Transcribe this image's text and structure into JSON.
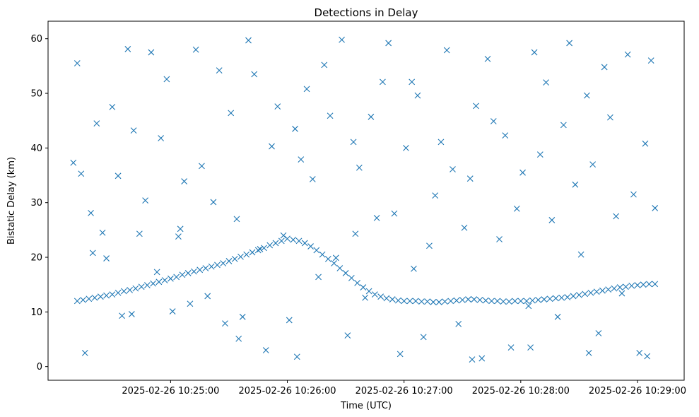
{
  "chart_data": {
    "type": "scatter",
    "title": "Detections in Delay",
    "xlabel": "Time (UTC)",
    "ylabel": "Bistatic Delay (km)",
    "x_ticks": [
      "2025-02-26 10:25:00",
      "2025-02-26 10:26:00",
      "2025-02-26 10:27:00",
      "2025-02-26 10:28:00",
      "2025-02-26 10:29:00"
    ],
    "y_ticks": [
      0,
      10,
      20,
      30,
      40,
      50,
      60
    ],
    "xlim": [
      "2025-02-26 10:23:57",
      "2025-02-26 10:29:24"
    ],
    "ylim": [
      -2.5,
      63.2
    ],
    "grid": false,
    "marker": "x",
    "series_color": "#1f77b4",
    "series": [
      {
        "x": [
          "2025-02-26 10:24:12",
          "2025-02-26 10:24:15",
          "2025-02-26 10:24:18",
          "2025-02-26 10:24:21",
          "2025-02-26 10:24:24",
          "2025-02-26 10:24:27",
          "2025-02-26 10:24:30",
          "2025-02-26 10:24:33",
          "2025-02-26 10:24:36",
          "2025-02-26 10:24:39",
          "2025-02-26 10:24:42",
          "2025-02-26 10:24:45",
          "2025-02-26 10:24:48",
          "2025-02-26 10:24:51",
          "2025-02-26 10:24:54",
          "2025-02-26 10:24:57",
          "2025-02-26 10:25:00",
          "2025-02-26 10:25:03",
          "2025-02-26 10:25:06",
          "2025-02-26 10:25:09",
          "2025-02-26 10:25:12",
          "2025-02-26 10:25:15",
          "2025-02-26 10:25:18",
          "2025-02-26 10:25:21",
          "2025-02-26 10:25:24",
          "2025-02-26 10:25:27",
          "2025-02-26 10:25:30",
          "2025-02-26 10:25:33",
          "2025-02-26 10:25:36",
          "2025-02-26 10:25:39",
          "2025-02-26 10:25:42",
          "2025-02-26 10:25:45",
          "2025-02-26 10:25:48",
          "2025-02-26 10:25:51",
          "2025-02-26 10:25:54",
          "2025-02-26 10:25:57",
          "2025-02-26 10:26:00",
          "2025-02-26 10:26:03",
          "2025-02-26 10:26:06",
          "2025-02-26 10:26:09",
          "2025-02-26 10:26:12",
          "2025-02-26 10:26:15",
          "2025-02-26 10:26:18",
          "2025-02-26 10:26:21",
          "2025-02-26 10:26:24",
          "2025-02-26 10:26:27",
          "2025-02-26 10:26:30",
          "2025-02-26 10:26:33",
          "2025-02-26 10:26:36",
          "2025-02-26 10:26:39",
          "2025-02-26 10:26:42",
          "2025-02-26 10:26:45",
          "2025-02-26 10:26:48",
          "2025-02-26 10:26:51",
          "2025-02-26 10:26:54",
          "2025-02-26 10:26:57",
          "2025-02-26 10:27:00",
          "2025-02-26 10:27:03",
          "2025-02-26 10:27:06",
          "2025-02-26 10:27:09",
          "2025-02-26 10:27:12",
          "2025-02-26 10:27:15",
          "2025-02-26 10:27:18",
          "2025-02-26 10:27:21",
          "2025-02-26 10:27:24",
          "2025-02-26 10:27:27",
          "2025-02-26 10:27:30",
          "2025-02-26 10:27:33",
          "2025-02-26 10:27:36",
          "2025-02-26 10:27:39",
          "2025-02-26 10:27:42",
          "2025-02-26 10:27:45",
          "2025-02-26 10:27:48",
          "2025-02-26 10:27:51",
          "2025-02-26 10:27:54",
          "2025-02-26 10:27:57",
          "2025-02-26 10:28:00",
          "2025-02-26 10:28:03",
          "2025-02-26 10:28:06",
          "2025-02-26 10:28:09",
          "2025-02-26 10:28:12",
          "2025-02-26 10:28:15",
          "2025-02-26 10:28:18",
          "2025-02-26 10:28:21",
          "2025-02-26 10:28:24",
          "2025-02-26 10:28:27",
          "2025-02-26 10:28:30",
          "2025-02-26 10:28:33",
          "2025-02-26 10:28:36",
          "2025-02-26 10:28:39",
          "2025-02-26 10:28:42",
          "2025-02-26 10:28:45",
          "2025-02-26 10:28:48",
          "2025-02-26 10:28:51",
          "2025-02-26 10:28:54",
          "2025-02-26 10:28:57",
          "2025-02-26 10:29:00",
          "2025-02-26 10:29:03",
          "2025-02-26 10:29:06",
          "2025-02-26 10:29:09"
        ],
        "y": [
          12.0,
          12.2,
          12.4,
          12.6,
          12.8,
          13.0,
          13.2,
          13.5,
          13.8,
          14.0,
          14.3,
          14.6,
          14.9,
          15.2,
          15.5,
          15.8,
          16.1,
          16.4,
          16.8,
          17.1,
          17.4,
          17.7,
          18.0,
          18.3,
          18.6,
          18.9,
          19.3,
          19.7,
          20.1,
          20.5,
          20.9,
          21.3,
          21.7,
          22.2,
          22.6,
          23.0,
          23.4,
          23.2,
          23.0,
          22.6,
          22.0,
          21.3,
          20.5,
          19.7,
          18.9,
          18.0,
          17.1,
          16.2,
          15.3,
          14.5,
          13.8,
          13.2,
          12.8,
          12.5,
          12.3,
          12.1,
          12.0,
          12.0,
          12.0,
          11.9,
          11.9,
          11.8,
          11.8,
          11.9,
          12.0,
          12.1,
          12.2,
          12.3,
          12.3,
          12.2,
          12.1,
          12.0,
          12.0,
          11.9,
          11.9,
          12.0,
          12.0,
          12.0,
          12.1,
          12.2,
          12.3,
          12.4,
          12.5,
          12.6,
          12.7,
          12.9,
          13.1,
          13.3,
          13.5,
          13.7,
          13.9,
          14.1,
          14.3,
          14.5,
          14.6,
          14.8,
          14.9,
          15.0,
          15.1,
          15.1
        ]
      },
      {
        "x": [
          "2025-02-26 10:24:10",
          "2025-02-26 10:24:12",
          "2025-02-26 10:24:14",
          "2025-02-26 10:24:16",
          "2025-02-26 10:24:19",
          "2025-02-26 10:24:22",
          "2025-02-26 10:24:25",
          "2025-02-26 10:24:27",
          "2025-02-26 10:24:30",
          "2025-02-26 10:24:33",
          "2025-02-26 10:24:35",
          "2025-02-26 10:24:38",
          "2025-02-26 10:24:41",
          "2025-02-26 10:24:44",
          "2025-02-26 10:24:47",
          "2025-02-26 10:24:50",
          "2025-02-26 10:24:53",
          "2025-02-26 10:24:55",
          "2025-02-26 10:24:58",
          "2025-02-26 10:25:01",
          "2025-02-26 10:25:04",
          "2025-02-26 10:25:07",
          "2025-02-26 10:25:10",
          "2025-02-26 10:25:13",
          "2025-02-26 10:25:16",
          "2025-02-26 10:25:19",
          "2025-02-26 10:25:22",
          "2025-02-26 10:25:25",
          "2025-02-26 10:25:28",
          "2025-02-26 10:25:31",
          "2025-02-26 10:25:34",
          "2025-02-26 10:25:37",
          "2025-02-26 10:25:40",
          "2025-02-26 10:25:43",
          "2025-02-26 10:25:46",
          "2025-02-26 10:25:49",
          "2025-02-26 10:25:52",
          "2025-02-26 10:25:55",
          "2025-02-26 10:25:58",
          "2025-02-26 10:26:01",
          "2025-02-26 10:26:04",
          "2025-02-26 10:26:07",
          "2025-02-26 10:26:10",
          "2025-02-26 10:26:13",
          "2025-02-26 10:26:16",
          "2025-02-26 10:26:19",
          "2025-02-26 10:26:22",
          "2025-02-26 10:26:25",
          "2025-02-26 10:26:28",
          "2025-02-26 10:26:31",
          "2025-02-26 10:26:34",
          "2025-02-26 10:26:37",
          "2025-02-26 10:26:40",
          "2025-02-26 10:26:43",
          "2025-02-26 10:26:46",
          "2025-02-26 10:26:49",
          "2025-02-26 10:26:52",
          "2025-02-26 10:26:55",
          "2025-02-26 10:26:58",
          "2025-02-26 10:27:01",
          "2025-02-26 10:27:04",
          "2025-02-26 10:27:07",
          "2025-02-26 10:27:10",
          "2025-02-26 10:27:13",
          "2025-02-26 10:27:16",
          "2025-02-26 10:27:19",
          "2025-02-26 10:27:22",
          "2025-02-26 10:27:25",
          "2025-02-26 10:27:28",
          "2025-02-26 10:27:31",
          "2025-02-26 10:27:34",
          "2025-02-26 10:27:37",
          "2025-02-26 10:27:40",
          "2025-02-26 10:27:43",
          "2025-02-26 10:27:46",
          "2025-02-26 10:27:49",
          "2025-02-26 10:27:52",
          "2025-02-26 10:27:55",
          "2025-02-26 10:27:58",
          "2025-02-26 10:28:01",
          "2025-02-26 10:28:04",
          "2025-02-26 10:28:07",
          "2025-02-26 10:28:10",
          "2025-02-26 10:28:13",
          "2025-02-26 10:28:16",
          "2025-02-26 10:28:19",
          "2025-02-26 10:28:22",
          "2025-02-26 10:28:25",
          "2025-02-26 10:28:28",
          "2025-02-26 10:28:31",
          "2025-02-26 10:28:34",
          "2025-02-26 10:28:37",
          "2025-02-26 10:28:40",
          "2025-02-26 10:28:43",
          "2025-02-26 10:28:46",
          "2025-02-26 10:28:49",
          "2025-02-26 10:28:52",
          "2025-02-26 10:28:55",
          "2025-02-26 10:28:58",
          "2025-02-26 10:29:01",
          "2025-02-26 10:29:04",
          "2025-02-26 10:29:07",
          "2025-02-26 10:29:09",
          "2025-02-26 10:24:20",
          "2025-02-26 10:24:40",
          "2025-02-26 10:25:05",
          "2025-02-26 10:25:35",
          "2025-02-26 10:26:05",
          "2025-02-26 10:26:35",
          "2025-02-26 10:27:05",
          "2025-02-26 10:27:35",
          "2025-02-26 10:28:05",
          "2025-02-26 10:28:35",
          "2025-02-26 10:29:05"
        ],
        "y": [
          37.3,
          55.5,
          35.3,
          2.5,
          28.1,
          44.5,
          24.5,
          19.8,
          47.5,
          34.9,
          9.3,
          58.1,
          43.2,
          24.3,
          30.4,
          57.5,
          17.3,
          41.8,
          52.6,
          10.1,
          23.8,
          33.9,
          11.5,
          58.0,
          36.7,
          12.9,
          30.1,
          54.2,
          7.9,
          46.4,
          27.0,
          9.1,
          59.7,
          53.5,
          21.5,
          3.0,
          40.3,
          47.6,
          24.0,
          8.5,
          43.5,
          37.9,
          50.8,
          34.3,
          16.4,
          55.2,
          45.9,
          19.9,
          59.8,
          5.7,
          41.1,
          36.4,
          12.6,
          45.7,
          27.2,
          52.1,
          59.2,
          28.0,
          2.3,
          40.0,
          52.1,
          49.6,
          5.4,
          22.1,
          31.3,
          41.1,
          57.9,
          36.1,
          7.8,
          25.4,
          34.4,
          47.7,
          1.5,
          56.3,
          44.9,
          23.3,
          42.3,
          3.5,
          28.9,
          35.5,
          11.1,
          57.5,
          38.8,
          52.0,
          26.8,
          9.1,
          44.2,
          59.2,
          33.3,
          20.5,
          49.6,
          37.0,
          6.1,
          54.8,
          45.6,
          27.5,
          13.4,
          57.1,
          31.5,
          2.5,
          40.8,
          56.0,
          29.0,
          20.8,
          9.6,
          25.2,
          5.1,
          1.8,
          24.3,
          17.9,
          1.3,
          3.5,
          2.5,
          1.9
        ]
      }
    ]
  }
}
